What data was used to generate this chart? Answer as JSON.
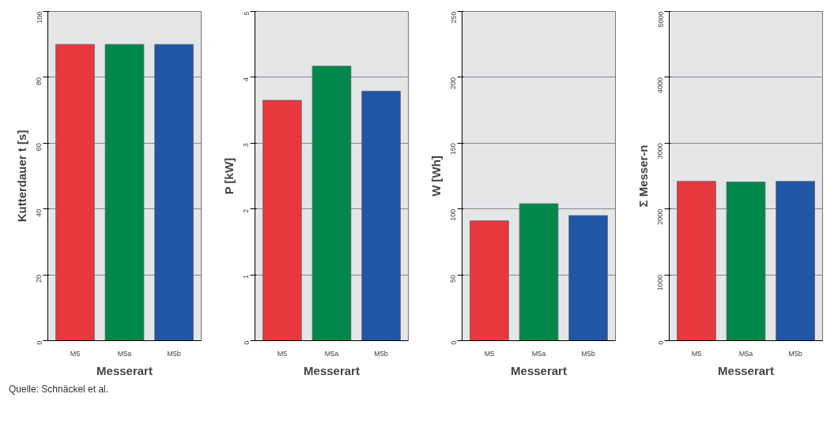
{
  "chart_data": [
    {
      "type": "bar",
      "categories": [
        "M5",
        "M5a",
        "M5b"
      ],
      "values": [
        90,
        90,
        90
      ],
      "colors": [
        "#e8383d",
        "#00884a",
        "#1f56a5"
      ],
      "xlabel": "Messerart",
      "ylabel": "Kutterdauer t [s]",
      "ylim": [
        0,
        100
      ],
      "yticks": [
        0,
        20,
        40,
        60,
        80,
        100
      ],
      "grid": "y"
    },
    {
      "type": "bar",
      "categories": [
        "M5",
        "M5a",
        "M5b"
      ],
      "values": [
        3.65,
        4.17,
        3.79
      ],
      "colors": [
        "#e8383d",
        "#00884a",
        "#1f56a5"
      ],
      "xlabel": "Messerart",
      "ylabel": "P [kW]",
      "ylim": [
        0,
        5
      ],
      "yticks": [
        0,
        1,
        2,
        3,
        4,
        5
      ],
      "grid": "y"
    },
    {
      "type": "bar",
      "categories": [
        "M5",
        "M5a",
        "M5b"
      ],
      "values": [
        91,
        104,
        95
      ],
      "colors": [
        "#e8383d",
        "#00884a",
        "#1f56a5"
      ],
      "xlabel": "Messerart",
      "ylabel": "W [Wh]",
      "ylim": [
        0,
        250
      ],
      "yticks": [
        0,
        50,
        100,
        150,
        200,
        250
      ],
      "grid": "y"
    },
    {
      "type": "bar",
      "categories": [
        "M5",
        "M5a",
        "M5b"
      ],
      "values": [
        2420,
        2410,
        2420
      ],
      "colors": [
        "#e8383d",
        "#00884a",
        "#1f56a5"
      ],
      "xlabel": "Messerart",
      "ylabel": "Σ Messer-n",
      "ylim": [
        0,
        5000
      ],
      "yticks": [
        0,
        1000,
        2000,
        3000,
        4000,
        5000
      ],
      "grid": "y",
      "annotations": [
        "Quelle: Schnäckel et al."
      ]
    }
  ]
}
